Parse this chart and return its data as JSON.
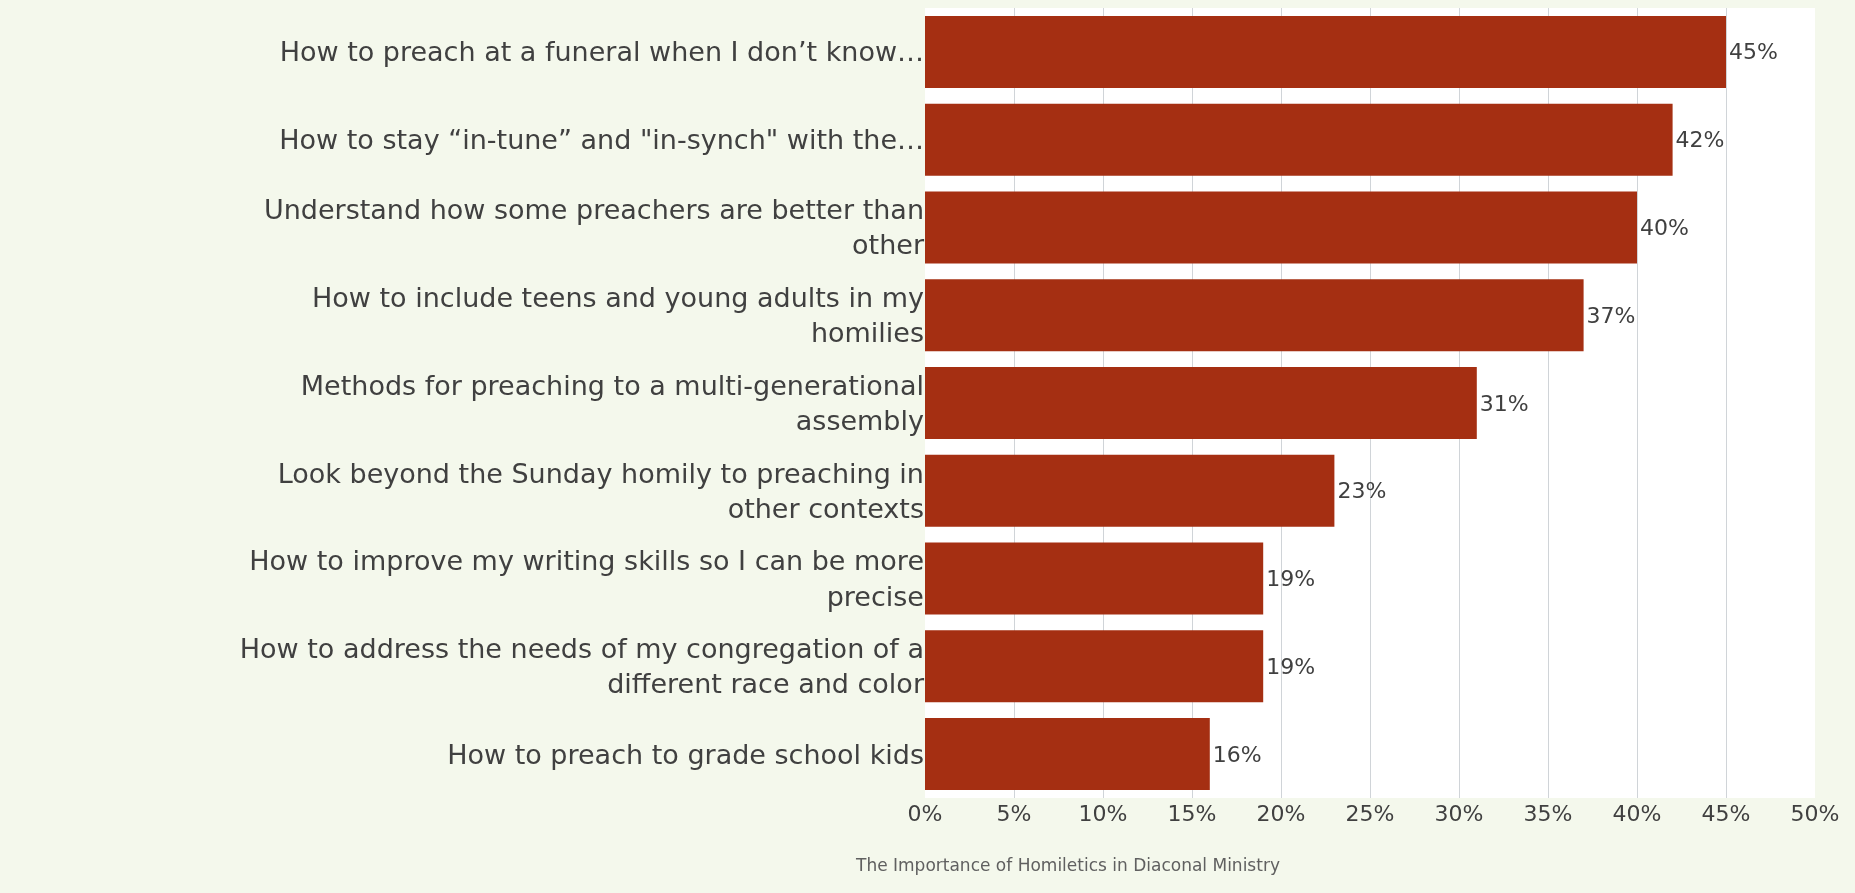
{
  "chart_data": {
    "type": "bar",
    "orientation": "horizontal",
    "categories": [
      "How to preach at a funeral when I don’t know…",
      "How to stay “in-tune” and \"in-synch\" with the…",
      "Understand how some preachers are better than other",
      "How to include teens and young adults in my homilies",
      "Methods for preaching to a multi-generational assembly",
      "Look beyond the Sunday homily to preaching in other contexts",
      "How to improve my writing skills so I can be more precise",
      "How to address the needs of my congregation of a different race and color",
      "How to preach to grade school kids"
    ],
    "values": [
      45,
      42,
      40,
      37,
      31,
      23,
      19,
      19,
      16
    ],
    "value_labels": [
      "45%",
      "42%",
      "40%",
      "37%",
      "31%",
      "23%",
      "19%",
      "19%",
      "16%"
    ],
    "color": "#a52f12",
    "xlim": [
      0,
      50
    ],
    "xticks": [
      {
        "value": 0,
        "label": "0%"
      },
      {
        "value": 5,
        "label": "5%"
      },
      {
        "value": 10,
        "label": "10%"
      },
      {
        "value": 15,
        "label": "15%"
      },
      {
        "value": 20,
        "label": "20%"
      },
      {
        "value": 25,
        "label": "25%"
      },
      {
        "value": 30,
        "label": "30%"
      },
      {
        "value": 35,
        "label": "35%"
      },
      {
        "value": 40,
        "label": "40%"
      },
      {
        "value": 45,
        "label": "45%"
      },
      {
        "value": 50,
        "label": "50%"
      }
    ],
    "grid": "x",
    "annotations": [
      "The Importance of Homiletics in Diaconal Ministry"
    ]
  }
}
